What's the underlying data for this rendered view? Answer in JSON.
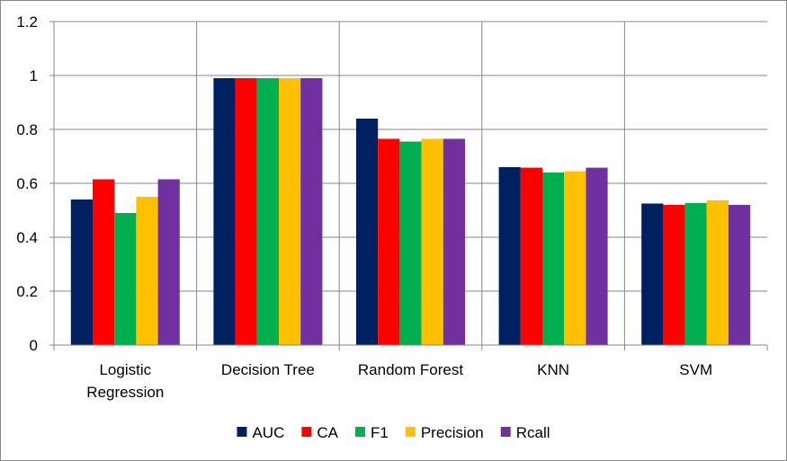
{
  "chart_data": {
    "type": "bar",
    "title": "",
    "xlabel": "",
    "ylabel": "",
    "ylim": [
      0,
      1.2
    ],
    "yticks": [
      "0",
      "0.2",
      "0.4",
      "0.6",
      "0.8",
      "1",
      "1.2"
    ],
    "grid": true,
    "legend_position": "bottom",
    "categories": [
      [
        "Logistic",
        "Regression"
      ],
      [
        "Decision Tree"
      ],
      [
        "Random Forest"
      ],
      [
        "KNN"
      ],
      [
        "SVM"
      ]
    ],
    "series": [
      {
        "name": "AUC",
        "color": "#002060",
        "values": [
          0.54,
          0.99,
          0.84,
          0.66,
          0.525
        ]
      },
      {
        "name": "CA",
        "color": "#FF0000",
        "values": [
          0.615,
          0.99,
          0.765,
          0.658,
          0.52
        ]
      },
      {
        "name": "F1",
        "color": "#00B050",
        "values": [
          0.49,
          0.99,
          0.755,
          0.64,
          0.527
        ]
      },
      {
        "name": "Precision",
        "color": "#FFC000",
        "values": [
          0.55,
          0.99,
          0.765,
          0.645,
          0.537
        ]
      },
      {
        "name": "Rcall",
        "color": "#7030A0",
        "values": [
          0.615,
          0.99,
          0.765,
          0.658,
          0.52
        ]
      }
    ]
  }
}
